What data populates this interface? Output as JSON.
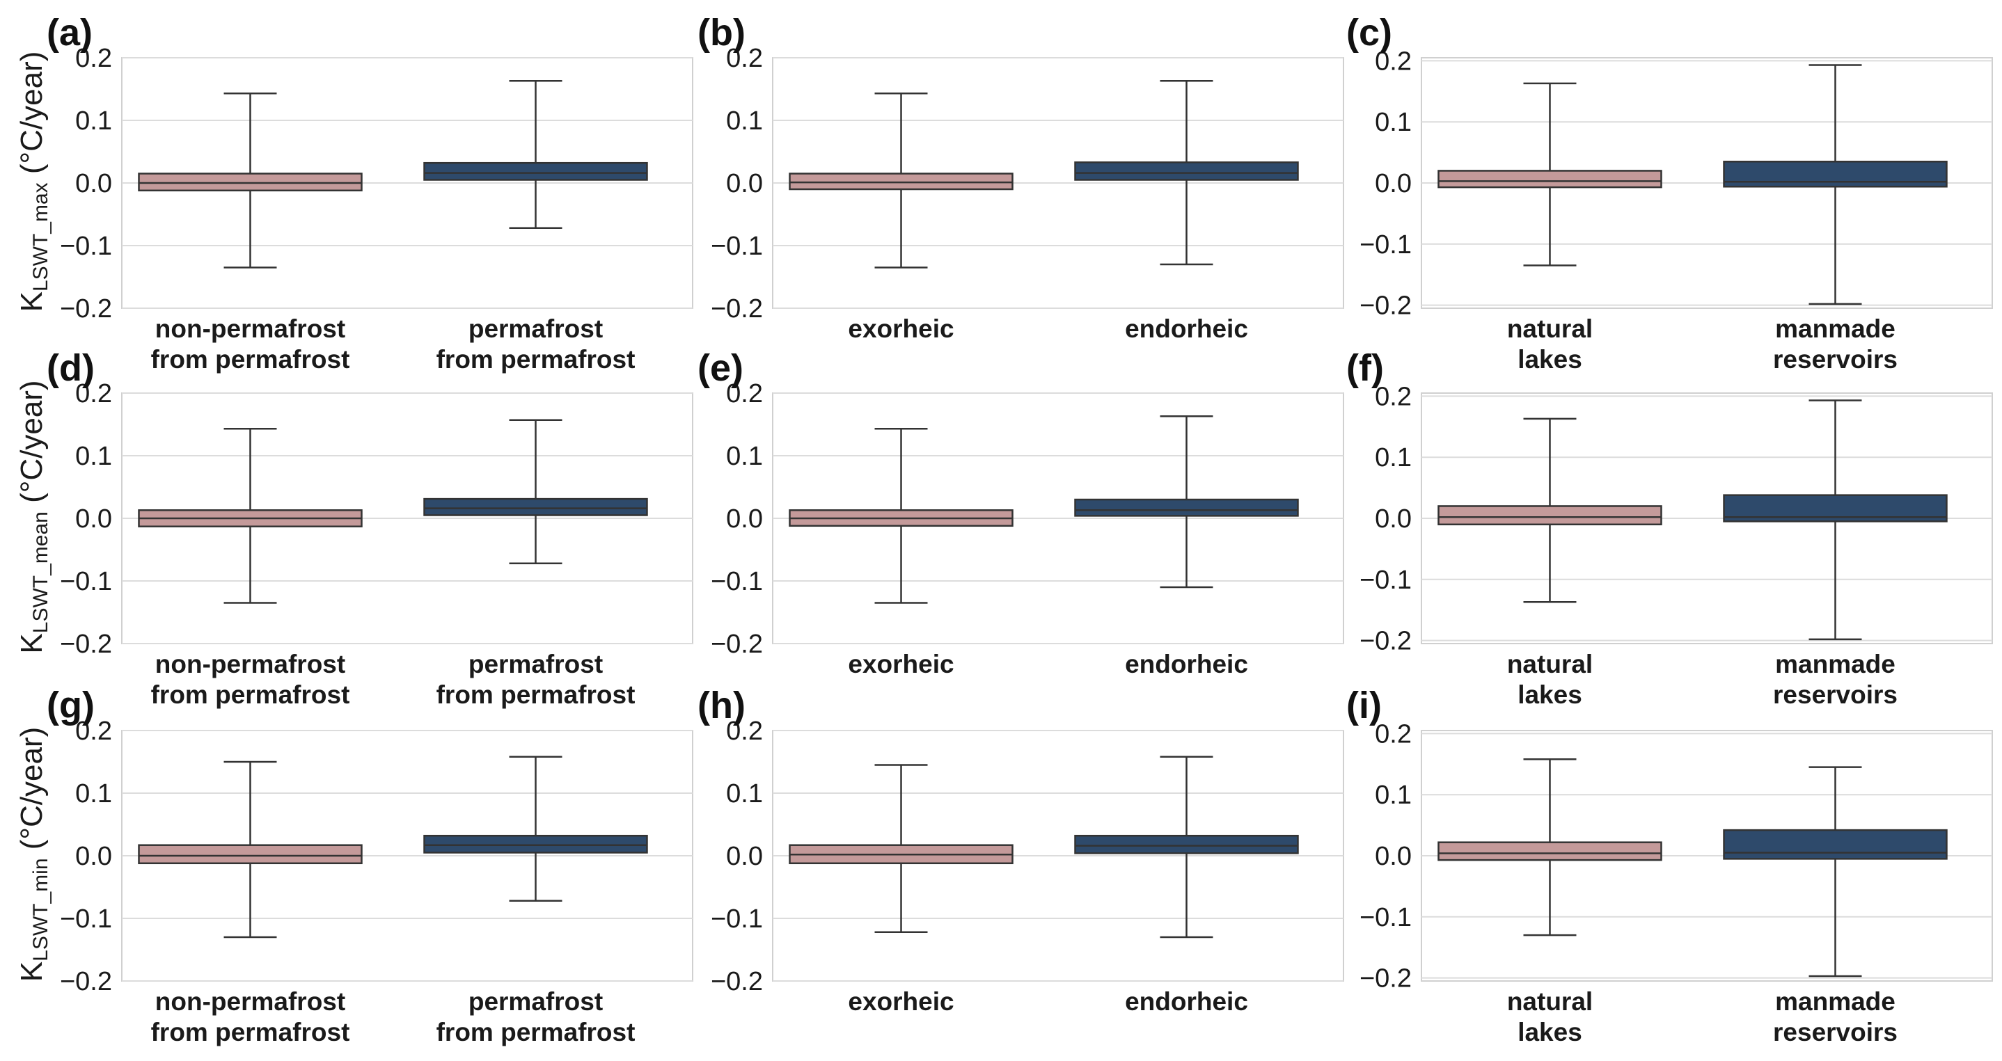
{
  "chart_data": [
    {
      "panel": "(a)",
      "type": "box",
      "ylabel": "K",
      "ylabel_sub": "LSWT_max",
      "ylabel_unit": " (°C/year)",
      "ylim": [
        -0.2,
        0.2
      ],
      "yticks": [
        "0.2",
        "0.1",
        "0.0",
        "−0.1",
        "−0.2"
      ],
      "grid": true,
      "boxes": [
        {
          "label_lines": [
            "non-permafrost",
            "from permafrost"
          ],
          "color": "#c49a9a",
          "whislo": -0.135,
          "q1": -0.012,
          "med": 0.0,
          "q3": 0.015,
          "whishi": 0.143
        },
        {
          "label_lines": [
            "permafrost",
            "from permafrost"
          ],
          "color": "#2e4a6b",
          "whislo": -0.072,
          "q1": 0.005,
          "med": 0.016,
          "q3": 0.032,
          "whishi": 0.163
        }
      ]
    },
    {
      "panel": "(b)",
      "type": "box",
      "ylim": [
        -0.2,
        0.2
      ],
      "yticks": [
        "0.2",
        "0.1",
        "0.0",
        "−0.1",
        "−0.2"
      ],
      "grid": true,
      "boxes": [
        {
          "label_lines": [
            "exorheic"
          ],
          "color": "#c49a9a",
          "whislo": -0.135,
          "q1": -0.01,
          "med": 0.001,
          "q3": 0.015,
          "whishi": 0.143
        },
        {
          "label_lines": [
            "endorheic"
          ],
          "color": "#2e4a6b",
          "whislo": -0.13,
          "q1": 0.005,
          "med": 0.016,
          "q3": 0.033,
          "whishi": 0.163
        }
      ]
    },
    {
      "panel": "(c)",
      "type": "box",
      "ylim": [
        -0.205,
        0.205
      ],
      "yticks": [
        "0.2",
        "0.1",
        "0.0",
        "−0.1",
        "−0.2"
      ],
      "grid": true,
      "boxes": [
        {
          "label_lines": [
            "natural",
            "lakes"
          ],
          "color": "#c49a9a",
          "whislo": -0.135,
          "q1": -0.007,
          "med": 0.003,
          "q3": 0.02,
          "whishi": 0.163
        },
        {
          "label_lines": [
            "manmade",
            "reservoirs"
          ],
          "color": "#2e4a6b",
          "whislo": -0.198,
          "q1": -0.006,
          "med": 0.002,
          "q3": 0.035,
          "whishi": 0.193
        }
      ]
    },
    {
      "panel": "(d)",
      "type": "box",
      "ylabel": "K",
      "ylabel_sub": "LSWT_mean",
      "ylabel_unit": " (°C/year)",
      "ylim": [
        -0.2,
        0.2
      ],
      "yticks": [
        "0.2",
        "0.1",
        "0.0",
        "−0.1",
        "−0.2"
      ],
      "grid": true,
      "boxes": [
        {
          "label_lines": [
            "non-permafrost",
            "from permafrost"
          ],
          "color": "#c49a9a",
          "whislo": -0.135,
          "q1": -0.013,
          "med": 0.0,
          "q3": 0.013,
          "whishi": 0.143
        },
        {
          "label_lines": [
            "permafrost",
            "from permafrost"
          ],
          "color": "#2e4a6b",
          "whislo": -0.072,
          "q1": 0.005,
          "med": 0.016,
          "q3": 0.031,
          "whishi": 0.157
        }
      ]
    },
    {
      "panel": "(e)",
      "type": "box",
      "ylim": [
        -0.2,
        0.2
      ],
      "yticks": [
        "0.2",
        "0.1",
        "0.0",
        "−0.1",
        "−0.2"
      ],
      "grid": true,
      "boxes": [
        {
          "label_lines": [
            "exorheic"
          ],
          "color": "#c49a9a",
          "whislo": -0.135,
          "q1": -0.012,
          "med": 0.0,
          "q3": 0.013,
          "whishi": 0.143
        },
        {
          "label_lines": [
            "endorheic"
          ],
          "color": "#2e4a6b",
          "whislo": -0.11,
          "q1": 0.004,
          "med": 0.013,
          "q3": 0.03,
          "whishi": 0.163
        }
      ]
    },
    {
      "panel": "(f)",
      "type": "box",
      "ylim": [
        -0.205,
        0.205
      ],
      "yticks": [
        "0.2",
        "0.1",
        "0.0",
        "−0.1",
        "−0.2"
      ],
      "grid": true,
      "boxes": [
        {
          "label_lines": [
            "natural",
            "lakes"
          ],
          "color": "#c49a9a",
          "whislo": -0.137,
          "q1": -0.01,
          "med": 0.002,
          "q3": 0.02,
          "whishi": 0.163
        },
        {
          "label_lines": [
            "manmade",
            "reservoirs"
          ],
          "color": "#2e4a6b",
          "whislo": -0.198,
          "q1": -0.005,
          "med": 0.002,
          "q3": 0.038,
          "whishi": 0.193
        }
      ]
    },
    {
      "panel": "(g)",
      "type": "box",
      "ylabel": "K",
      "ylabel_sub": "LSWT_min",
      "ylabel_unit": " (°C/year)",
      "ylim": [
        -0.2,
        0.2
      ],
      "yticks": [
        "0.2",
        "0.1",
        "0.0",
        "−0.1",
        "−0.2"
      ],
      "grid": true,
      "boxes": [
        {
          "label_lines": [
            "non-permafrost",
            "from permafrost"
          ],
          "color": "#c49a9a",
          "whislo": -0.13,
          "q1": -0.012,
          "med": 0.0,
          "q3": 0.017,
          "whishi": 0.15
        },
        {
          "label_lines": [
            "permafrost",
            "from permafrost"
          ],
          "color": "#2e4a6b",
          "whislo": -0.072,
          "q1": 0.005,
          "med": 0.017,
          "q3": 0.032,
          "whishi": 0.158
        }
      ]
    },
    {
      "panel": "(h)",
      "type": "box",
      "ylim": [
        -0.2,
        0.2
      ],
      "yticks": [
        "0.2",
        "0.1",
        "0.0",
        "−0.1",
        "−0.2"
      ],
      "grid": true,
      "boxes": [
        {
          "label_lines": [
            "exorheic"
          ],
          "color": "#c49a9a",
          "whislo": -0.122,
          "q1": -0.012,
          "med": 0.002,
          "q3": 0.017,
          "whishi": 0.145
        },
        {
          "label_lines": [
            "endorheic"
          ],
          "color": "#2e4a6b",
          "whislo": -0.13,
          "q1": 0.004,
          "med": 0.016,
          "q3": 0.032,
          "whishi": 0.158
        }
      ]
    },
    {
      "panel": "(i)",
      "type": "box",
      "ylim": [
        -0.205,
        0.205
      ],
      "yticks": [
        "0.2",
        "0.1",
        "0.0",
        "−0.1",
        "−0.2"
      ],
      "grid": true,
      "boxes": [
        {
          "label_lines": [
            "natural",
            "lakes"
          ],
          "color": "#c49a9a",
          "whislo": -0.13,
          "q1": -0.007,
          "med": 0.004,
          "q3": 0.022,
          "whishi": 0.158
        },
        {
          "label_lines": [
            "manmade",
            "reservoirs"
          ],
          "color": "#2e4a6b",
          "whislo": -0.197,
          "q1": -0.005,
          "med": 0.005,
          "q3": 0.042,
          "whishi": 0.145
        }
      ]
    }
  ]
}
